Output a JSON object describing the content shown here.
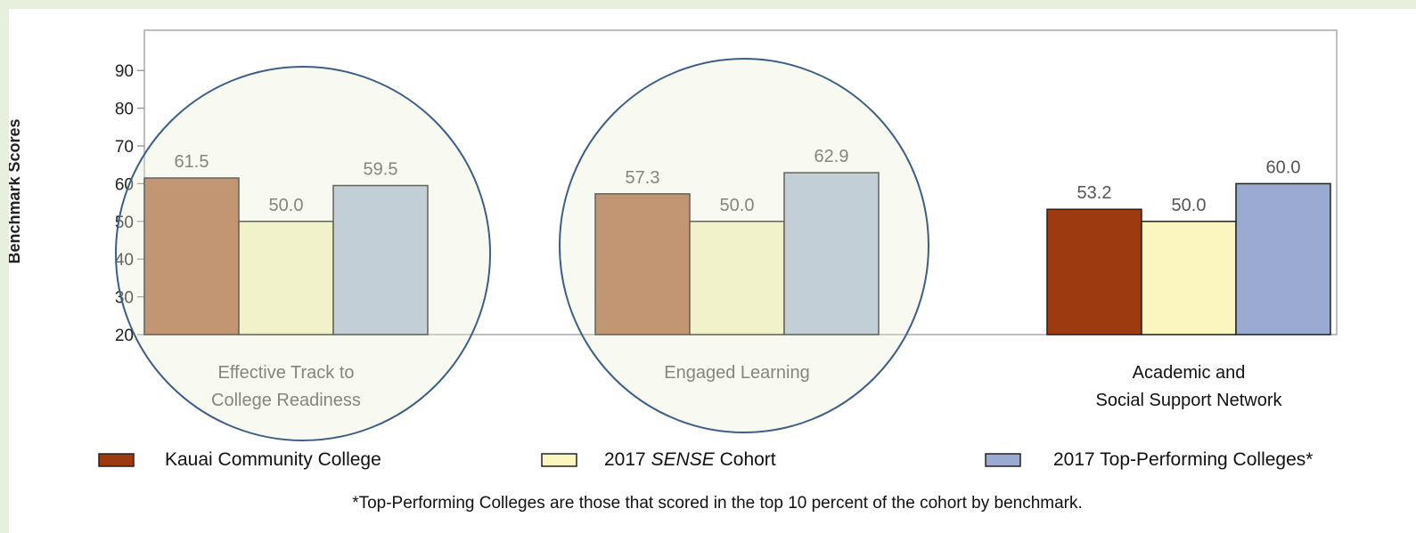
{
  "chart_data": {
    "type": "bar",
    "ylabel": "Benchmark Scores",
    "ylim": [
      20,
      90
    ],
    "yticks": [
      "20",
      "30",
      "40",
      "50",
      "60",
      "70",
      "80",
      "90"
    ],
    "groups": [
      {
        "lines": [
          "Effective Track to",
          "College Readiness"
        ],
        "highlighted": true,
        "values": [
          61.5,
          50.0,
          59.5
        ],
        "labels": [
          "61.5",
          "50.0",
          "59.5"
        ]
      },
      {
        "lines": [
          "Engaged Learning"
        ],
        "highlighted": true,
        "values": [
          57.3,
          50.0,
          62.9
        ],
        "labels": [
          "57.3",
          "50.0",
          "62.9"
        ]
      },
      {
        "lines": [
          "Academic and",
          "Social Support Network"
        ],
        "highlighted": false,
        "values": [
          53.2,
          50.0,
          60.0
        ],
        "labels": [
          "53.2",
          "50.0",
          "60.0"
        ]
      }
    ],
    "series": [
      {
        "name": "Kauai Community College",
        "color": "#9e3a10",
        "faded_color": "#b06a45"
      },
      {
        "name": "2017 SENSE Cohort",
        "name_parts": [
          "2017 ",
          "SENSE",
          " Cohort"
        ],
        "color": "#fbf5c0",
        "faded_color": "#f7f3c5"
      },
      {
        "name": "2017 Top-Performing Colleges*",
        "color": "#9aaad0",
        "faded_color": "#b2c0d6"
      }
    ],
    "legend_position": "bottom",
    "footnote": "*Top-Performing Colleges are those that scored in the top 10 percent of the cohort by benchmark."
  }
}
